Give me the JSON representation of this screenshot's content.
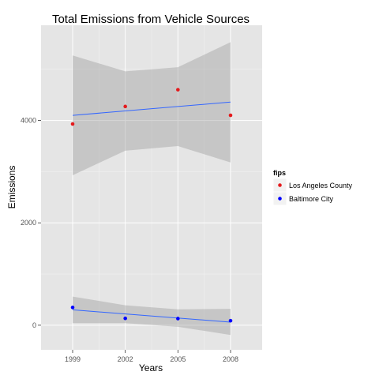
{
  "chart_data": {
    "type": "scatter",
    "title": "Total Emissions from Vehicle Sources",
    "xlabel": "Years",
    "ylabel": "Emissions",
    "x_ticks": [
      1999,
      2002,
      2005,
      2008
    ],
    "y_ticks": [
      0,
      2000,
      4000
    ],
    "xlim": [
      1997.2,
      2009.8
    ],
    "ylim": [
      -480,
      5860
    ],
    "grid": true,
    "legend": {
      "title": "fips",
      "position": "right"
    },
    "series": [
      {
        "name": "Los Angeles County",
        "color": "#e41a1c",
        "points": [
          {
            "x": 1999,
            "y": 3931
          },
          {
            "x": 2002,
            "y": 4274
          },
          {
            "x": 2005,
            "y": 4601
          },
          {
            "x": 2008,
            "y": 4101
          }
        ],
        "fit": {
          "color": "#3366ff",
          "line": [
            {
              "x": 1999,
              "y": 4100
            },
            {
              "x": 2008,
              "y": 4360
            }
          ],
          "band": [
            {
              "x": 1999,
              "lo": 2930,
              "hi": 5270
            },
            {
              "x": 2002,
              "lo": 3410,
              "hi": 4960
            },
            {
              "x": 2005,
              "lo": 3500,
              "hi": 5040
            },
            {
              "x": 2008,
              "lo": 3180,
              "hi": 5530
            }
          ]
        }
      },
      {
        "name": "Baltimore City",
        "color": "#0000ff",
        "points": [
          {
            "x": 1999,
            "y": 347
          },
          {
            "x": 2002,
            "y": 134
          },
          {
            "x": 2005,
            "y": 130
          },
          {
            "x": 2008,
            "y": 88
          }
        ],
        "fit": {
          "color": "#3366ff",
          "line": [
            {
              "x": 1999,
              "y": 300
            },
            {
              "x": 2008,
              "y": 60
            }
          ],
          "band": [
            {
              "x": 1999,
              "lo": 40,
              "hi": 560
            },
            {
              "x": 2002,
              "lo": 40,
              "hi": 390
            },
            {
              "x": 2005,
              "lo": -30,
              "hi": 310
            },
            {
              "x": 2008,
              "lo": -190,
              "hi": 320
            }
          ]
        }
      }
    ]
  }
}
